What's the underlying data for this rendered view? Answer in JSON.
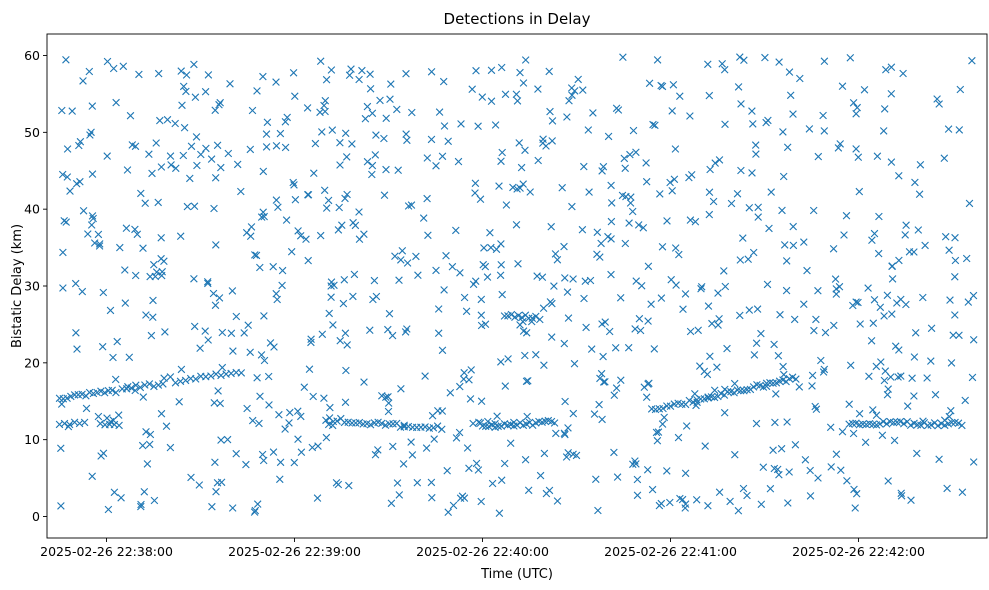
{
  "chart_data": {
    "type": "scatter",
    "title": "Detections in Delay",
    "xlabel": "Time (UTC)",
    "ylabel": "Bistatic Delay (km)",
    "x_ticks": [
      "2025-02-26 22:38:00",
      "2025-02-26 22:39:00",
      "2025-02-26 22:40:00",
      "2025-02-26 22:41:00",
      "2025-02-26 22:42:00"
    ],
    "y_ticks": [
      "0",
      "10",
      "20",
      "30",
      "40",
      "50",
      "60"
    ],
    "xlim": [
      "2025-02-26 22:37:41",
      "2025-02-26 22:42:41"
    ],
    "ylim": [
      -2.8,
      62.8
    ],
    "marker": "x",
    "color": "#1f77b4",
    "grid": false,
    "legend": "none",
    "tracks": [
      {
        "x_start": "2025-02-26 22:37:45",
        "x_end": "2025-02-26 22:38:03",
        "y_start": 15.5,
        "y_end": 16.3,
        "count": 16
      },
      {
        "x_start": "2025-02-26 22:38:05",
        "x_end": "2025-02-26 22:38:18",
        "y_start": 16.8,
        "y_end": 17.2,
        "count": 10
      },
      {
        "x_start": "2025-02-26 22:38:22",
        "x_end": "2025-02-26 22:38:43",
        "y_start": 17.6,
        "y_end": 18.8,
        "count": 14
      },
      {
        "x_start": "2025-02-26 22:37:45",
        "x_end": "2025-02-26 22:37:53",
        "y_start": 12.2,
        "y_end": 12.0,
        "count": 6
      },
      {
        "x_start": "2025-02-26 22:37:58",
        "x_end": "2025-02-26 22:38:04",
        "y_start": 12.0,
        "y_end": 11.8,
        "count": 5
      },
      {
        "x_start": "2025-02-26 22:39:10",
        "x_end": "2025-02-26 22:39:35",
        "y_start": 12.7,
        "y_end": 11.8,
        "count": 22
      },
      {
        "x_start": "2025-02-26 22:39:35",
        "x_end": "2025-02-26 22:39:47",
        "y_start": 11.8,
        "y_end": 11.6,
        "count": 10
      },
      {
        "x_start": "2025-02-26 22:40:00",
        "x_end": "2025-02-26 22:40:23",
        "y_start": 11.7,
        "y_end": 12.3,
        "count": 24
      },
      {
        "x_start": "2025-02-26 22:39:57",
        "x_end": "2025-02-26 22:40:04",
        "y_start": 12.2,
        "y_end": 12.3,
        "count": 4
      },
      {
        "x_start": "2025-02-26 22:40:07",
        "x_end": "2025-02-26 22:40:17",
        "y_start": 26.2,
        "y_end": 26.0,
        "count": 10
      },
      {
        "x_start": "2025-02-26 22:40:54",
        "x_end": "2025-02-26 22:41:12",
        "y_start": 14.0,
        "y_end": 15.4,
        "count": 16
      },
      {
        "x_start": "2025-02-26 22:41:12",
        "x_end": "2025-02-26 22:41:40",
        "y_start": 15.5,
        "y_end": 18.0,
        "count": 28
      },
      {
        "x_start": "2025-02-26 22:41:57",
        "x_end": "2025-02-26 22:42:33",
        "y_start": 12.2,
        "y_end": 12.0,
        "count": 34
      },
      {
        "x_start": "2025-02-26 22:38:55",
        "x_end": "2025-02-26 22:39:02",
        "y_start": 13.4,
        "y_end": 13.2,
        "count": 3
      }
    ],
    "clutter": {
      "x_start": "2025-02-26 22:37:44",
      "x_end": "2025-02-26 22:42:37",
      "y_min": 0.4,
      "y_max": 59.9,
      "count": 960
    }
  }
}
